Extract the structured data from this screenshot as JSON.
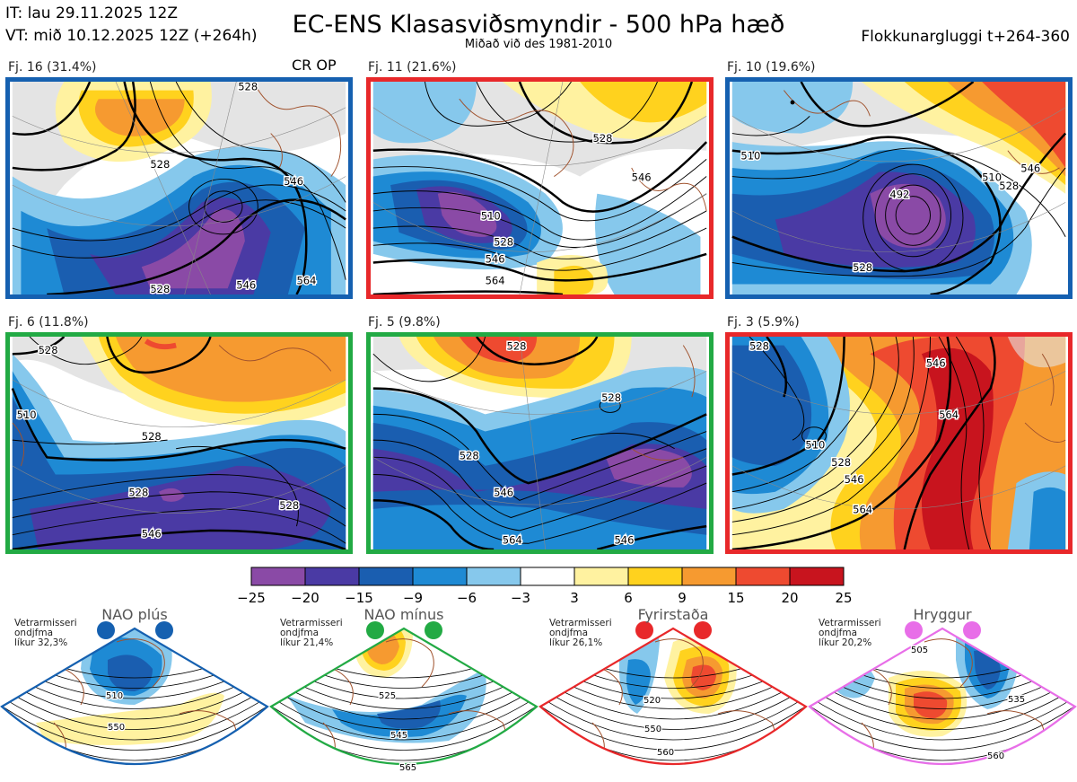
{
  "header": {
    "it": "IT: lau 29.11.2025 12Z",
    "vt": "VT: mið 10.12.2025 12Z  (+264h)",
    "title": "EC-ENS Klasasviðsmyndir - 500 hPa hæð",
    "subtitle": "Miðað við des 1981-2010",
    "window": "Flokkunargluggi t+264-360"
  },
  "panels": [
    {
      "label": "Fj. 16 (31.4%)",
      "tag": "CR OP",
      "regime": "NAO plús",
      "border": "#1560b0"
    },
    {
      "label": "Fj. 11 (21.6%)",
      "tag": "",
      "regime": "Fyrirstaða",
      "border": "#e8282a"
    },
    {
      "label": "Fj. 10 (19.6%)",
      "tag": "",
      "regime": "NAO plús",
      "border": "#1560b0"
    },
    {
      "label": "Fj. 6 (11.8%)",
      "tag": "",
      "regime": "NAO mínus",
      "border": "#22aa44"
    },
    {
      "label": "Fj. 5 (9.8%)",
      "tag": "",
      "regime": "NAO mínus",
      "border": "#22aa44"
    },
    {
      "label": "Fj. 3 (5.9%)",
      "tag": "",
      "regime": "Fyrirstaða",
      "border": "#e8282a"
    }
  ],
  "chart_data": {
    "type": "heatmap",
    "legend": {
      "bounds": [
        -25,
        -20,
        -15,
        -9,
        -6,
        -3,
        3,
        6,
        9,
        15,
        20,
        25
      ],
      "colors": [
        "#8a4aa6",
        "#4a3aa4",
        "#1a5eb0",
        "#1e8ad4",
        "#86c8ec",
        "#ffffff",
        "#fff2a0",
        "#ffd21e",
        "#f69a30",
        "#ee4a30",
        "#c8141e"
      ]
    }
  },
  "regimes": [
    {
      "name": "NAO plús",
      "note": [
        "Vetrarmisseri",
        "ondjfma",
        "líkur 32,3%"
      ],
      "color": "#1560b0",
      "labels": [
        "510",
        "550"
      ]
    },
    {
      "name": "NAO mínus",
      "note": [
        "Vetrarmisseri",
        "ondjfma",
        "líkur 21,4%"
      ],
      "color": "#22aa44",
      "labels": [
        "525",
        "545",
        "565"
      ]
    },
    {
      "name": "Fyrirstaða",
      "note": [
        "Vetrarmisseri",
        "ondjfma",
        "líkur 26,1%"
      ],
      "color": "#e8282a",
      "labels": [
        "520",
        "550",
        "560"
      ]
    },
    {
      "name": "Hryggur",
      "note": [
        "Vetrarmisseri",
        "ondjfma",
        "líkur 20,2%"
      ],
      "color": "#e86ee8",
      "labels": [
        "505",
        "535",
        "560"
      ]
    }
  ],
  "contour_labels": {
    "p0": [
      "528",
      "528",
      "546",
      "528",
      "546",
      "564"
    ],
    "p1": [
      "528",
      "546",
      "510",
      "528",
      "546",
      "564"
    ],
    "p2": [
      "510",
      "492",
      "510",
      "528",
      "546",
      "528"
    ],
    "p3": [
      "528",
      "510",
      "528",
      "528",
      "528",
      "546"
    ],
    "p4": [
      "528",
      "528",
      "528",
      "546",
      "564",
      "546"
    ],
    "p5": [
      "528",
      "546",
      "510",
      "528",
      "546",
      "564",
      "564"
    ]
  }
}
